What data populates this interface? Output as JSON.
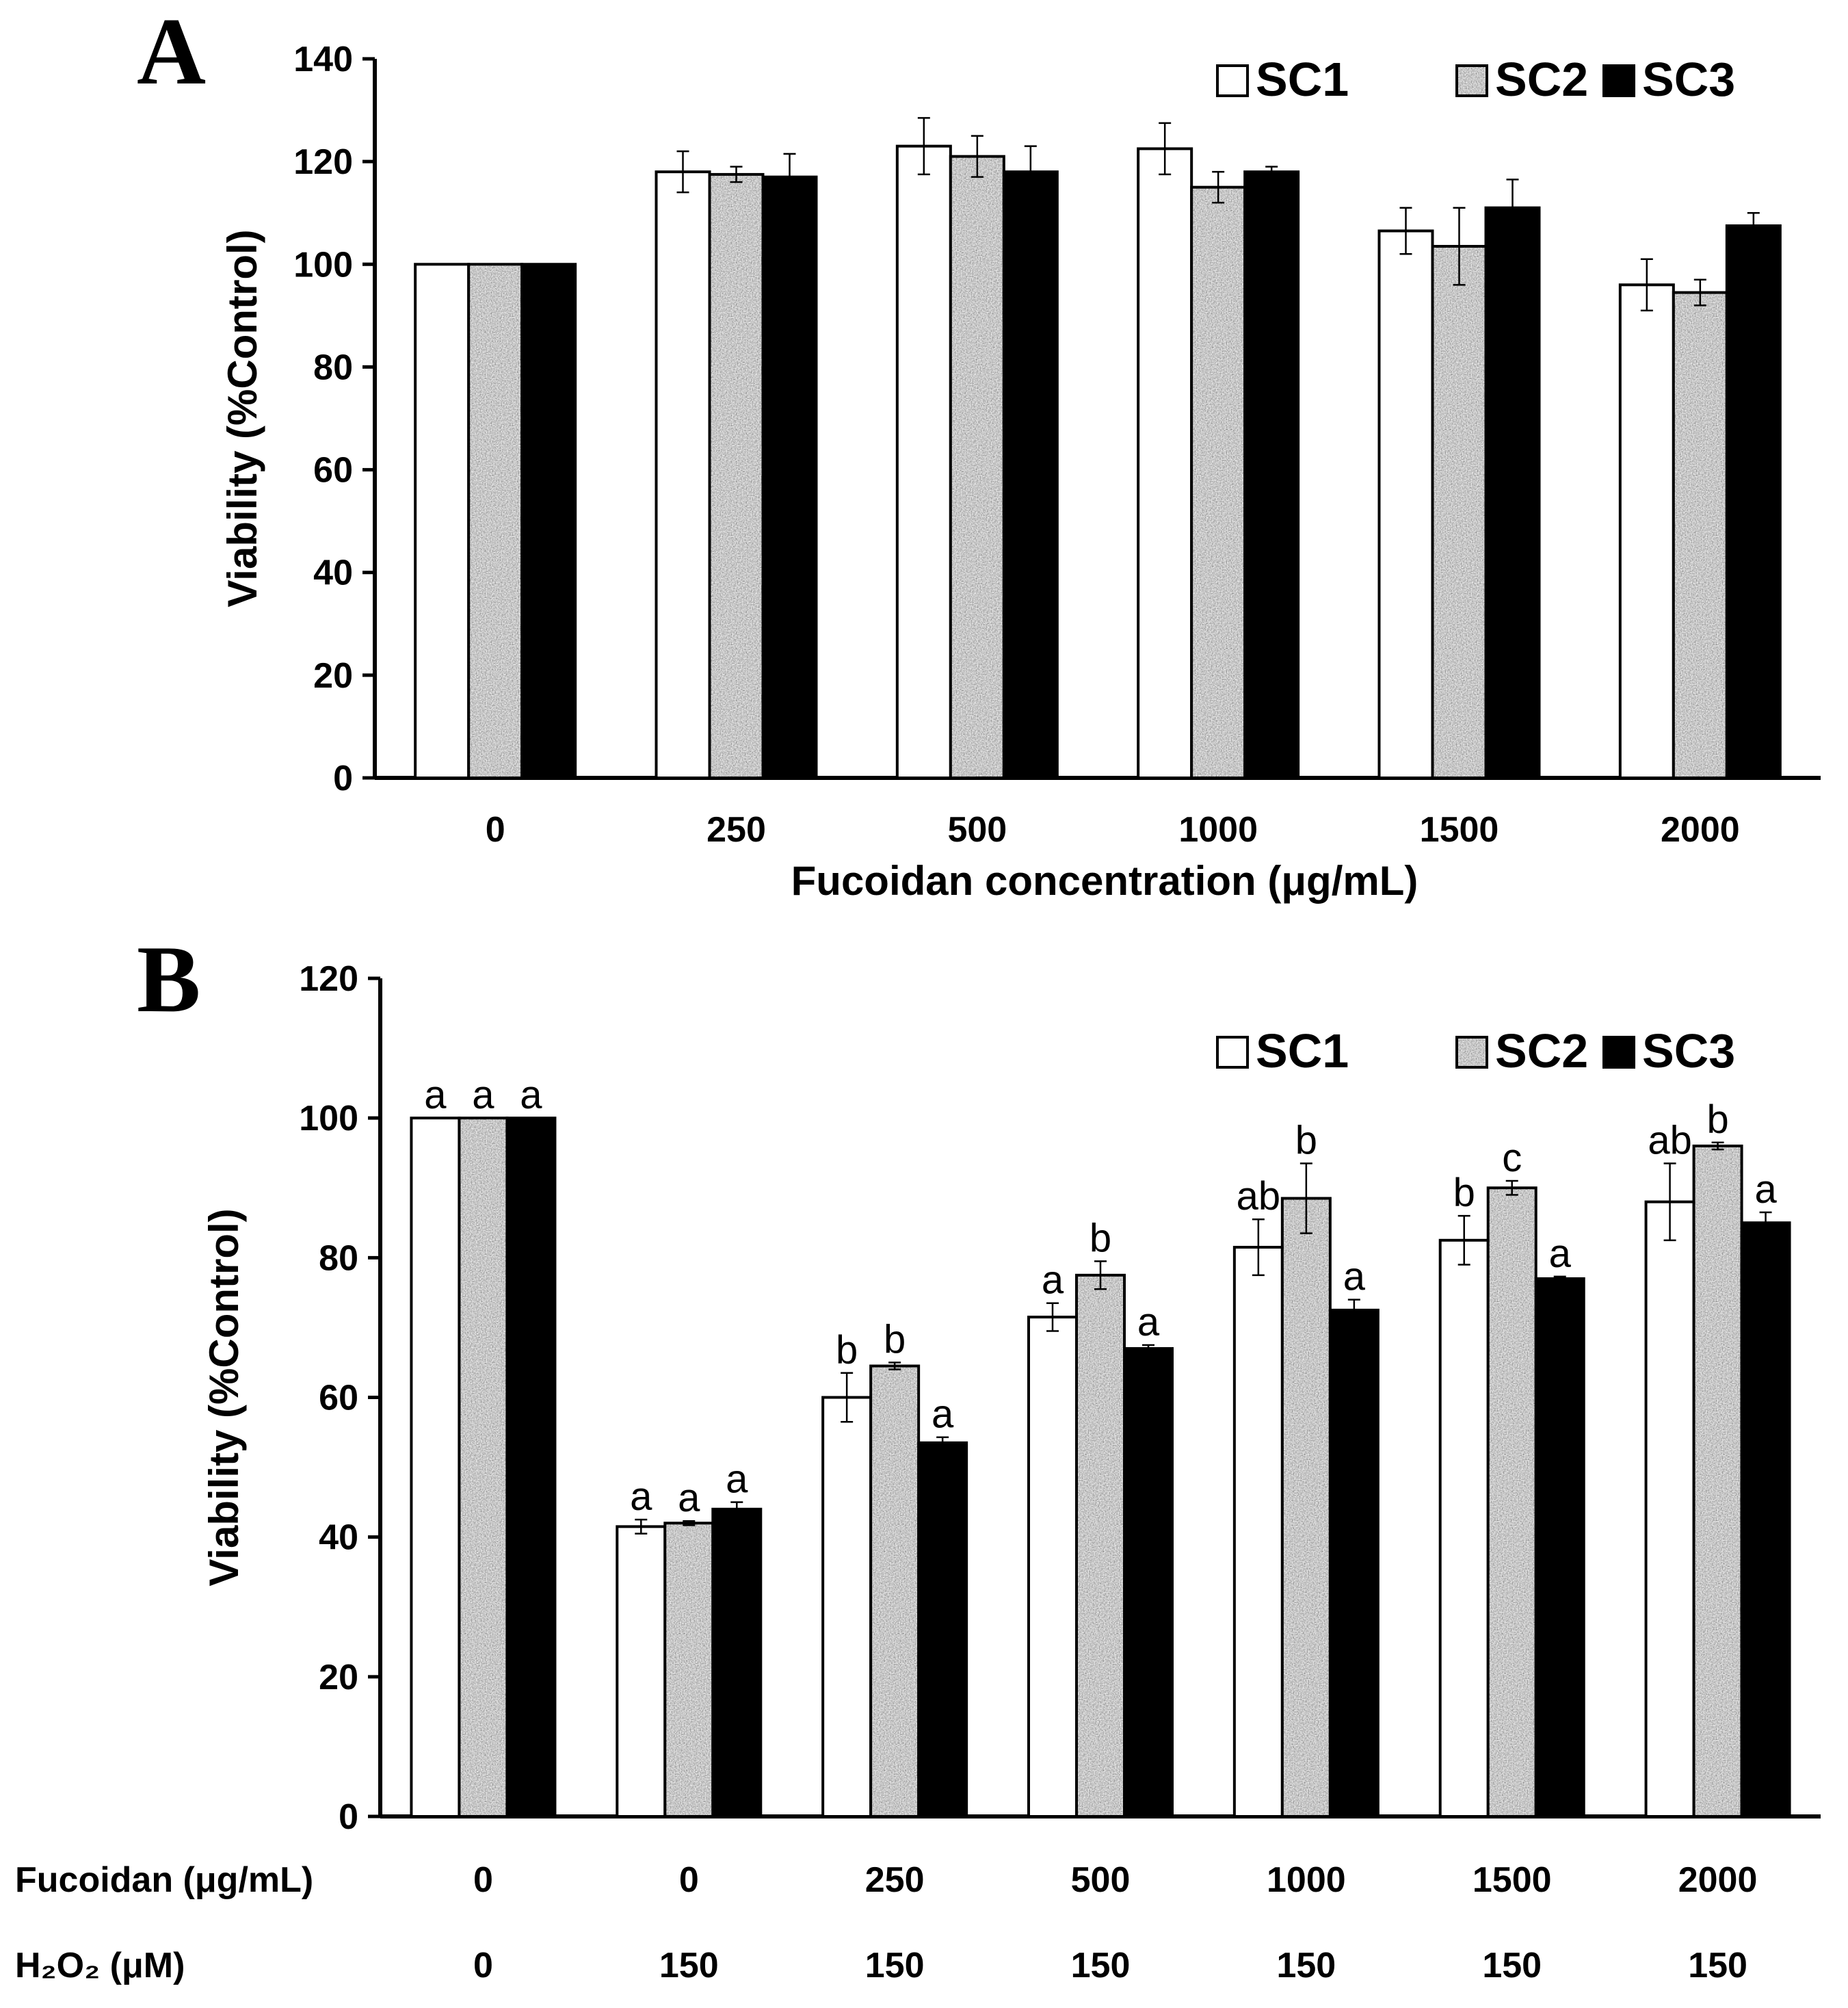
{
  "chart_data": [
    {
      "panel": "A",
      "type": "bar",
      "ylabel": "Viability (%Control)",
      "xlabel": "Fucoidan concentration (μg/mL)",
      "ylim": [
        0,
        140
      ],
      "yticks": [
        0,
        20,
        40,
        60,
        80,
        100,
        120,
        140
      ],
      "categories": [
        "0",
        "250",
        "500",
        "1000",
        "1500",
        "2000"
      ],
      "legend_position": "top-right",
      "series": [
        {
          "name": "SC1",
          "values": [
            100,
            118,
            123,
            122.5,
            106.5,
            96
          ],
          "errors": [
            0,
            4,
            5.5,
            5,
            4.5,
            5
          ]
        },
        {
          "name": "SC2",
          "values": [
            100,
            117.5,
            121,
            115,
            103.5,
            94.5
          ],
          "errors": [
            0,
            1.5,
            4,
            3,
            7.5,
            2.5
          ]
        },
        {
          "name": "SC3",
          "values": [
            100,
            117,
            118,
            118,
            111,
            107.5
          ],
          "errors": [
            0,
            4.5,
            5,
            1,
            5.5,
            2.5
          ]
        }
      ]
    },
    {
      "panel": "B",
      "type": "bar",
      "ylabel": "Viability (%Control)",
      "ylim": [
        0,
        120
      ],
      "yticks": [
        0,
        20,
        40,
        60,
        80,
        100,
        120
      ],
      "row_labels": [
        "Fucoidan (μg/mL)",
        "H₂O₂ (μM)"
      ],
      "rows": [
        [
          "0",
          "0",
          "250",
          "500",
          "1000",
          "1500",
          "2000"
        ],
        [
          "0",
          "150",
          "150",
          "150",
          "150",
          "150",
          "150"
        ]
      ],
      "legend_position": "top-right",
      "series": [
        {
          "name": "SC1",
          "values": [
            100,
            41.5,
            60,
            71.5,
            81.5,
            82.5,
            88
          ],
          "errors": [
            0,
            1,
            3.5,
            2,
            4,
            3.5,
            5.5
          ],
          "labels": [
            "a",
            "a",
            "b",
            "a",
            "ab",
            "b",
            "ab"
          ]
        },
        {
          "name": "SC2",
          "values": [
            100,
            42,
            64.5,
            77.5,
            88.5,
            90,
            96
          ],
          "errors": [
            0,
            0.3,
            0.5,
            2,
            5,
            1,
            0.5
          ],
          "labels": [
            "a",
            "a",
            "b",
            "b",
            "b",
            "c",
            "b"
          ]
        },
        {
          "name": "SC3",
          "values": [
            100,
            44,
            53.5,
            67,
            72.5,
            77,
            85
          ],
          "errors": [
            0,
            1,
            0.8,
            0.5,
            1.5,
            0.3,
            1.5
          ],
          "labels": [
            "a",
            "a",
            "a",
            "a",
            "a",
            "a",
            "a"
          ]
        }
      ]
    }
  ]
}
